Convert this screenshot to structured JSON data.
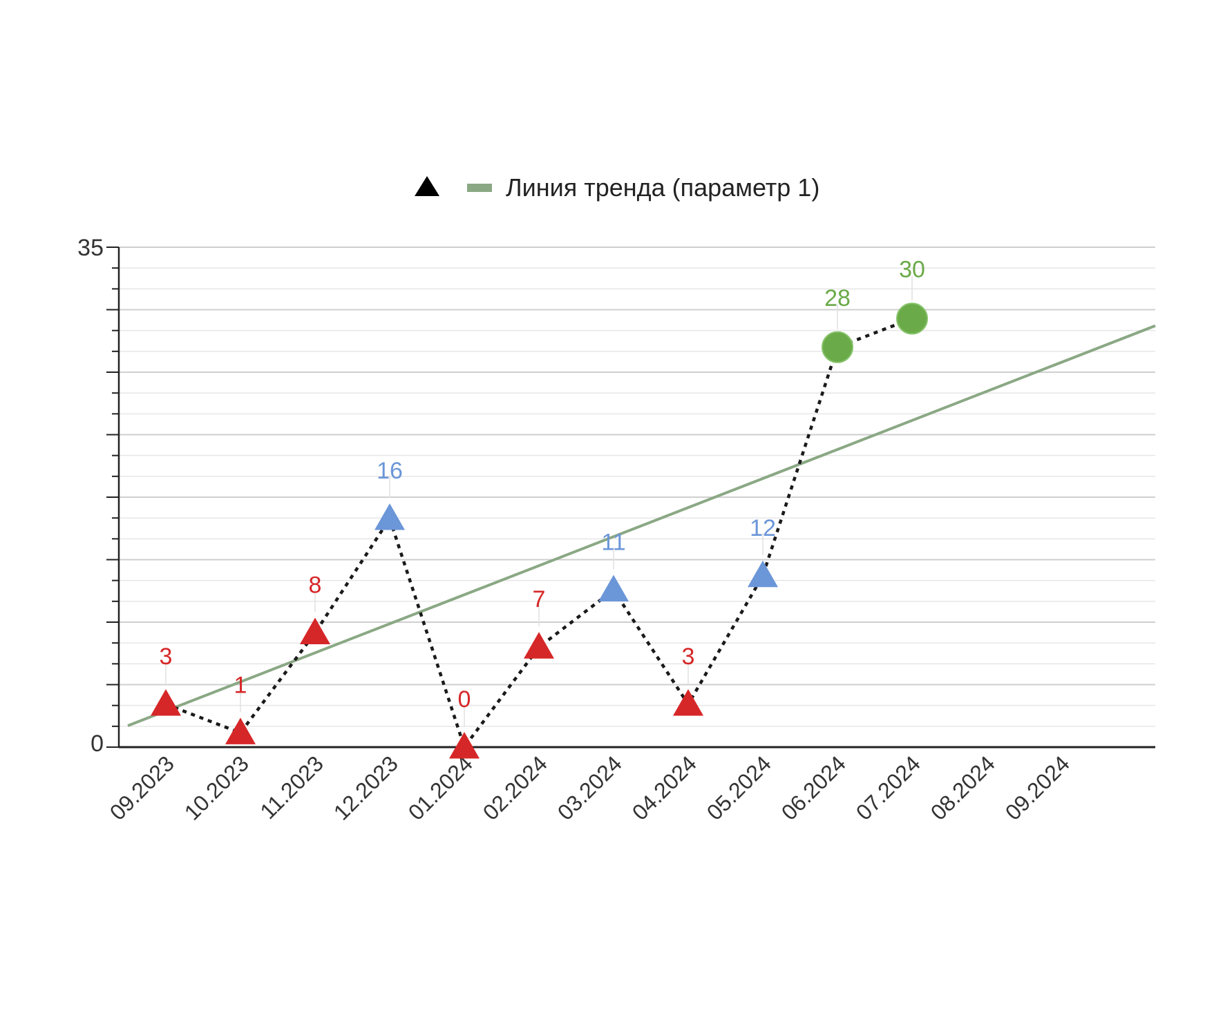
{
  "chart_data": {
    "type": "line",
    "categories": [
      "09.2023",
      "10.2023",
      "11.2023",
      "12.2023",
      "01.2024",
      "02.2024",
      "03.2024",
      "04.2024",
      "05.2024",
      "06.2024",
      "07.2024",
      "08.2024",
      "09.2024"
    ],
    "series": [
      {
        "values": [
          3,
          1,
          8,
          16,
          0,
          7,
          11,
          3,
          12,
          28,
          30,
          null,
          null
        ],
        "point_colors": [
          "#d62728",
          "#d62728",
          "#d62728",
          "#6b96d8",
          "#d62728",
          "#d62728",
          "#6b96d8",
          "#d62728",
          "#6b96d8",
          "#6aaa48",
          "#6aaa48",
          null,
          null
        ],
        "point_shapes": [
          "triangle",
          "triangle",
          "triangle",
          "triangle",
          "triangle",
          "triangle",
          "triangle",
          "triangle",
          "triangle",
          "circle",
          "circle",
          null,
          null
        ],
        "line_style": "dotted",
        "line_color": "#1a1a1a"
      },
      {
        "name": "Линия тренда (параметр 1)",
        "type": "trendline",
        "start_value": 1.5,
        "end_value": 29.5,
        "color": "#8aa884"
      }
    ],
    "ylim": [
      0,
      35
    ],
    "y_ticks": [
      "0",
      "35"
    ],
    "grid": true,
    "legend": {
      "position": "top-center",
      "items": [
        {
          "symbol": "triangle",
          "color": "#000000",
          "label": ""
        },
        {
          "symbol": "line",
          "color": "#8aa884",
          "label": "Линия тренда (параметр 1)"
        }
      ]
    },
    "title": "",
    "xlabel": "",
    "ylabel": ""
  }
}
